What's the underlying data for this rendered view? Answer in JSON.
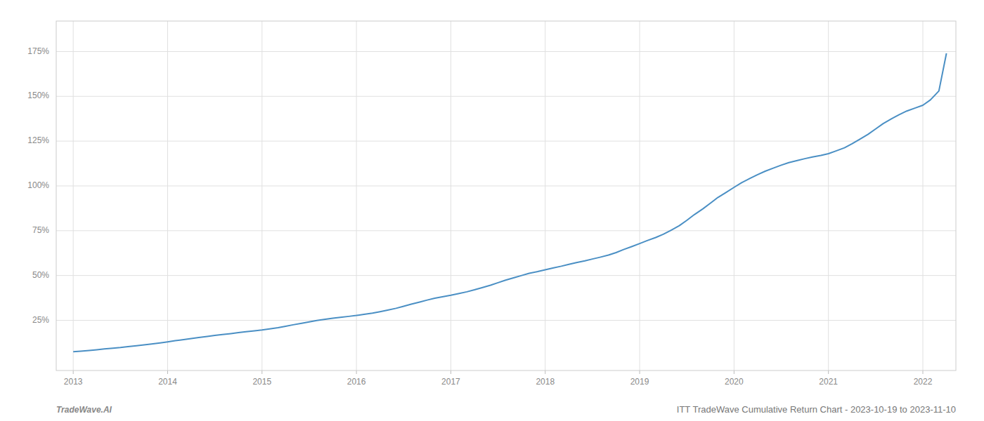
{
  "chart_data": {
    "type": "line",
    "title": "ITT TradeWave Cumulative Return Chart - 2023-10-19 to 2023-11-10",
    "annotations": [
      "TradeWave.AI"
    ],
    "color": "#4a8fc4",
    "grid": true,
    "xlim": [
      2012.82,
      2022.35
    ],
    "ylim": [
      -0.03,
      1.92
    ],
    "xticks": [
      2013,
      2014,
      2015,
      2016,
      2017,
      2018,
      2019,
      2020,
      2021,
      2022
    ],
    "yticks": [
      {
        "value": 0.25,
        "label": "25%"
      },
      {
        "value": 0.5,
        "label": "50%"
      },
      {
        "value": 0.75,
        "label": "75%"
      },
      {
        "value": 1.0,
        "label": "100%"
      },
      {
        "value": 1.25,
        "label": "125%"
      },
      {
        "value": 1.5,
        "label": "150%"
      },
      {
        "value": 1.75,
        "label": "175%"
      }
    ],
    "x": [
      2013.0,
      2013.08,
      2013.17,
      2013.25,
      2013.33,
      2013.42,
      2013.5,
      2013.58,
      2013.67,
      2013.75,
      2013.83,
      2013.92,
      2014.0,
      2014.08,
      2014.17,
      2014.25,
      2014.33,
      2014.42,
      2014.5,
      2014.58,
      2014.67,
      2014.75,
      2014.83,
      2014.92,
      2015.0,
      2015.08,
      2015.17,
      2015.25,
      2015.33,
      2015.42,
      2015.5,
      2015.58,
      2015.67,
      2015.75,
      2015.83,
      2015.92,
      2016.0,
      2016.08,
      2016.17,
      2016.25,
      2016.33,
      2016.42,
      2016.5,
      2016.58,
      2016.67,
      2016.75,
      2016.83,
      2016.92,
      2017.0,
      2017.08,
      2017.17,
      2017.25,
      2017.33,
      2017.42,
      2017.5,
      2017.58,
      2017.67,
      2017.75,
      2017.83,
      2017.92,
      2018.0,
      2018.08,
      2018.17,
      2018.25,
      2018.33,
      2018.42,
      2018.5,
      2018.58,
      2018.67,
      2018.75,
      2018.83,
      2018.92,
      2019.0,
      2019.08,
      2019.17,
      2019.25,
      2019.33,
      2019.42,
      2019.5,
      2019.58,
      2019.67,
      2019.75,
      2019.83,
      2019.92,
      2020.0,
      2020.08,
      2020.17,
      2020.25,
      2020.33,
      2020.42,
      2020.5,
      2020.58,
      2020.67,
      2020.75,
      2020.83,
      2020.92,
      2021.0,
      2021.08,
      2021.17,
      2021.25,
      2021.33,
      2021.42,
      2021.5,
      2021.58,
      2021.67,
      2021.75,
      2021.83,
      2021.92,
      2022.0,
      2022.08,
      2022.17,
      2022.25
    ],
    "values": [
      0.075,
      0.078,
      0.082,
      0.086,
      0.09,
      0.094,
      0.098,
      0.103,
      0.108,
      0.113,
      0.118,
      0.124,
      0.13,
      0.136,
      0.142,
      0.148,
      0.154,
      0.16,
      0.166,
      0.171,
      0.176,
      0.181,
      0.186,
      0.191,
      0.196,
      0.202,
      0.209,
      0.217,
      0.225,
      0.233,
      0.241,
      0.249,
      0.256,
      0.262,
      0.267,
      0.272,
      0.277,
      0.283,
      0.29,
      0.298,
      0.307,
      0.317,
      0.328,
      0.34,
      0.352,
      0.363,
      0.373,
      0.382,
      0.39,
      0.399,
      0.409,
      0.42,
      0.432,
      0.446,
      0.46,
      0.474,
      0.488,
      0.5,
      0.512,
      0.522,
      0.532,
      0.542,
      0.552,
      0.562,
      0.572,
      0.582,
      0.592,
      0.602,
      0.614,
      0.628,
      0.645,
      0.662,
      0.678,
      0.695,
      0.712,
      0.73,
      0.752,
      0.778,
      0.808,
      0.84,
      0.872,
      0.904,
      0.936,
      0.965,
      0.992,
      1.018,
      1.042,
      1.063,
      1.082,
      1.1,
      1.116,
      1.13,
      1.142,
      1.152,
      1.161,
      1.17,
      1.18,
      1.195,
      1.213,
      1.235,
      1.26,
      1.288,
      1.318,
      1.348,
      1.375,
      1.398,
      1.418,
      1.435,
      1.45,
      1.48,
      1.53,
      1.74
    ]
  }
}
